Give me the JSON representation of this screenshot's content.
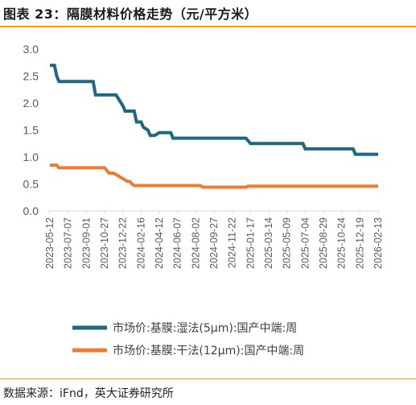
{
  "title": "图表 23：隔膜材料价格走势（元/平方米）",
  "source": "数据来源：iFnd，英大证券研究所",
  "colors": {
    "accent": "#f5a000",
    "wet": "#1f6782",
    "dry": "#ed7d31"
  },
  "chart_data": {
    "type": "line",
    "ylim": [
      0,
      3.0
    ],
    "yticks": [
      "0.0",
      "0.5",
      "1.0",
      "1.5",
      "2.0",
      "2.5",
      "3.0"
    ],
    "xticks": [
      "2023-05-12",
      "2023-07-07",
      "2023-09-01",
      "2023-10-27",
      "2023-12-22",
      "2024-02-16",
      "2024-04-12",
      "2024-06-07",
      "2024-08-02",
      "2024-09-27",
      "2024-11-22",
      "2025-01-17",
      "2025-03-14",
      "2025-05-09",
      "2025-07-04",
      "2025-08-29",
      "2025-10-24",
      "2025-12-19",
      "2026-02-13"
    ],
    "legend_position": "bottom",
    "series": [
      {
        "name": "市场价:基膜:湿法(5μm):国产中端:周",
        "x": [
          "2023-05-12",
          "2023-05-26",
          "2023-06-02",
          "2023-06-09",
          "2023-09-22",
          "2023-09-29",
          "2023-10-27",
          "2023-11-10",
          "2023-11-24",
          "2023-12-01",
          "2023-12-22",
          "2023-12-29",
          "2024-01-05",
          "2024-01-26",
          "2024-02-02",
          "2024-02-16",
          "2024-02-23",
          "2024-03-08",
          "2024-03-15",
          "2024-03-29",
          "2024-04-12",
          "2024-05-17",
          "2024-05-24",
          "2024-06-07",
          "2024-12-27",
          "2025-01-03",
          "2025-01-17",
          "2025-06-20",
          "2025-06-27",
          "2025-07-04",
          "2025-11-28",
          "2025-12-05",
          "2025-12-19",
          "2026-02-13"
        ],
        "y": [
          2.7,
          2.7,
          2.5,
          2.4,
          2.4,
          2.15,
          2.15,
          2.15,
          2.15,
          2.15,
          1.95,
          1.85,
          1.85,
          1.85,
          1.65,
          1.65,
          1.55,
          1.5,
          1.4,
          1.4,
          1.45,
          1.45,
          1.35,
          1.35,
          1.35,
          1.35,
          1.25,
          1.25,
          1.25,
          1.15,
          1.15,
          1.05,
          1.05,
          1.05
        ]
      },
      {
        "name": "市场价:基膜:干法(12μm):国产中端:周",
        "x": [
          "2023-05-12",
          "2023-06-02",
          "2023-06-09",
          "2023-10-27",
          "2023-11-03",
          "2023-11-10",
          "2023-11-24",
          "2023-12-08",
          "2023-12-22",
          "2024-01-05",
          "2024-01-12",
          "2024-01-19",
          "2024-01-26",
          "2024-02-16",
          "2024-08-16",
          "2024-08-23",
          "2025-01-03",
          "2025-01-10",
          "2026-02-13"
        ],
        "y": [
          0.85,
          0.85,
          0.8,
          0.8,
          0.75,
          0.7,
          0.7,
          0.65,
          0.6,
          0.55,
          0.55,
          0.5,
          0.47,
          0.47,
          0.47,
          0.44,
          0.44,
          0.46,
          0.46
        ]
      }
    ]
  }
}
